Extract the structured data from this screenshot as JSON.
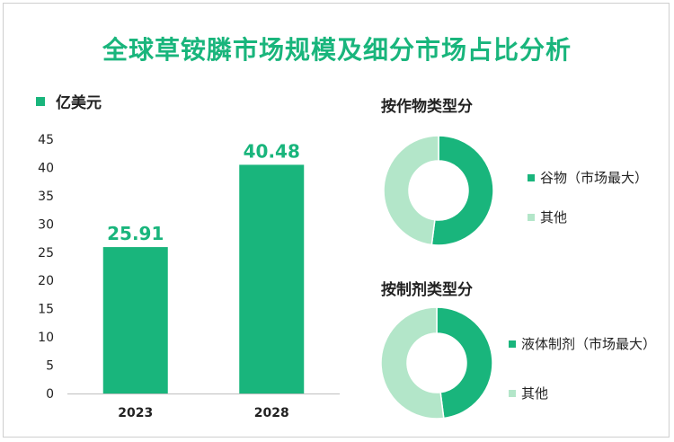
{
  "title": "全球草铵膦市场规模及细分市场占比分析",
  "colors": {
    "primary": "#19b57c",
    "secondary": "#b3e6c9",
    "title": "#19b57c"
  },
  "chart_data": [
    {
      "type": "bar",
      "unit": "亿美元",
      "categories": [
        "2023",
        "2028"
      ],
      "values": [
        25.91,
        40.48
      ],
      "value_labels": [
        "25.91",
        "40.48"
      ],
      "ylim": [
        0,
        45
      ],
      "yticks": [
        0,
        5,
        10,
        15,
        20,
        25,
        30,
        35,
        40,
        45
      ],
      "grid": false
    },
    {
      "type": "pie",
      "title": "按作物类型分",
      "slices": [
        {
          "label": "谷物（市场最大）",
          "value": 52
        },
        {
          "label": "其他",
          "value": 48
        }
      ],
      "donut": true
    },
    {
      "type": "pie",
      "title": "按制剂类型分",
      "slices": [
        {
          "label": "液体制剂（市场最大）",
          "value": 48
        },
        {
          "label": "其他",
          "value": 52
        }
      ],
      "donut": true
    }
  ]
}
